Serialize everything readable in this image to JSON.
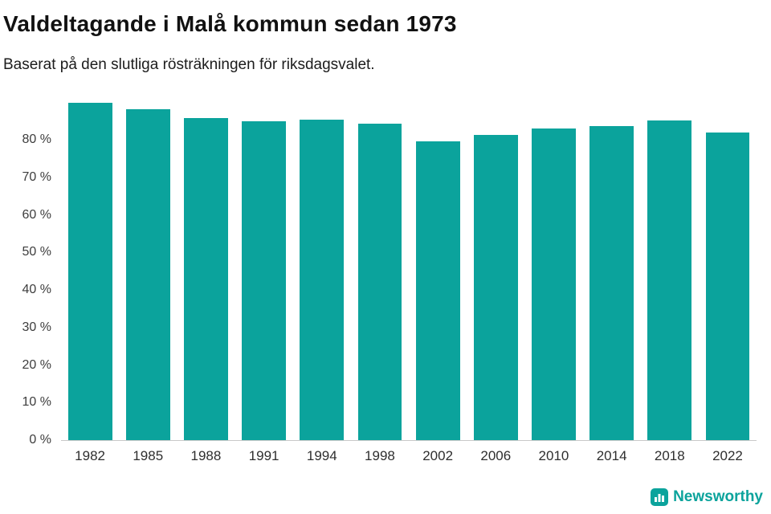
{
  "chart_data": {
    "type": "bar",
    "title": "Valdeltagande i Malå kommun sedan 1973",
    "subtitle": "Baserat på den slutliga rösträkningen för riksdagsvalet.",
    "categories": [
      "1982",
      "1985",
      "1988",
      "1991",
      "1994",
      "1998",
      "2002",
      "2006",
      "2010",
      "2014",
      "2018",
      "2022"
    ],
    "values": [
      89.9,
      88.1,
      85.9,
      85.0,
      85.4,
      84.3,
      79.6,
      81.2,
      83.0,
      83.6,
      85.2,
      82.0
    ],
    "xlabel": "",
    "ylabel": "",
    "ylim": [
      0,
      92
    ],
    "y_ticks": [
      {
        "value": 0,
        "label": "0 %"
      },
      {
        "value": 10,
        "label": "10 %"
      },
      {
        "value": 20,
        "label": "20 %"
      },
      {
        "value": 30,
        "label": "30 %"
      },
      {
        "value": 40,
        "label": "40 %"
      },
      {
        "value": 50,
        "label": "50 %"
      },
      {
        "value": 60,
        "label": "60 %"
      },
      {
        "value": 70,
        "label": "70 %"
      },
      {
        "value": 80,
        "label": "80 %"
      }
    ],
    "grid": false,
    "legend": "none",
    "bar_color": "#0ba39c",
    "axis_line_color": "#c9c9c9"
  },
  "footer": {
    "brand": "Newsworthy",
    "brand_color": "#0ba39c"
  }
}
